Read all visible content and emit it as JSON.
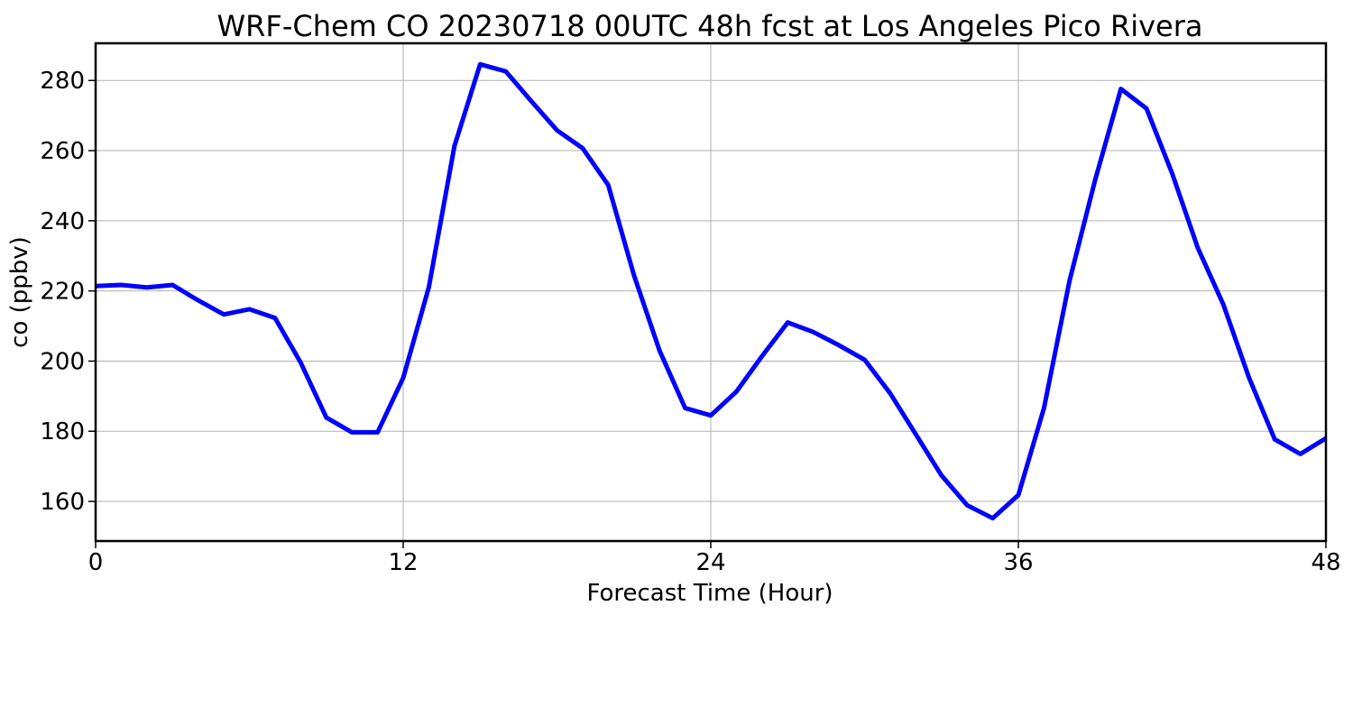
{
  "chart_data": {
    "type": "line",
    "title": "WRF-Chem CO  20230718 00UTC 48h fcst at Los Angeles Pico Rivera",
    "xlabel": "Forecast Time (Hour)",
    "ylabel": "co  (ppbv)",
    "xlim": [
      0,
      48
    ],
    "ylim": [
      148.7,
      290.6
    ],
    "xticks": [
      0,
      12,
      24,
      36,
      48
    ],
    "yticks": [
      160,
      180,
      200,
      220,
      240,
      260,
      280
    ],
    "grid": true,
    "legend": "none",
    "series": [
      {
        "color": "#0000ff",
        "x": [
          0,
          1,
          2,
          3,
          4,
          5,
          6,
          7,
          8,
          9,
          10,
          11,
          12,
          13,
          14,
          15,
          16,
          17,
          18,
          19,
          20,
          21,
          22,
          23,
          24,
          25,
          26,
          27,
          28,
          29,
          30,
          31,
          32,
          33,
          34,
          35,
          36,
          37,
          38,
          39,
          40,
          41,
          42,
          43,
          44,
          45,
          46,
          47,
          48
        ],
        "values": [
          221.4,
          221.7,
          221.0,
          221.7,
          217.3,
          213.3,
          214.8,
          212.3,
          199.6,
          183.9,
          179.7,
          179.7,
          195.2,
          221.0,
          261.3,
          284.6,
          282.6,
          274.1,
          265.8,
          260.7,
          250.2,
          224.5,
          203.0,
          186.6,
          184.5,
          191.3,
          201.4,
          211.0,
          208.3,
          204.5,
          200.4,
          190.8,
          179.1,
          167.4,
          158.9,
          155.2,
          161.8,
          186.6,
          223.0,
          251.8,
          277.6,
          272.0,
          253.5,
          232.3,
          216.1,
          195.2,
          177.7,
          173.5,
          178.0
        ]
      }
    ]
  }
}
